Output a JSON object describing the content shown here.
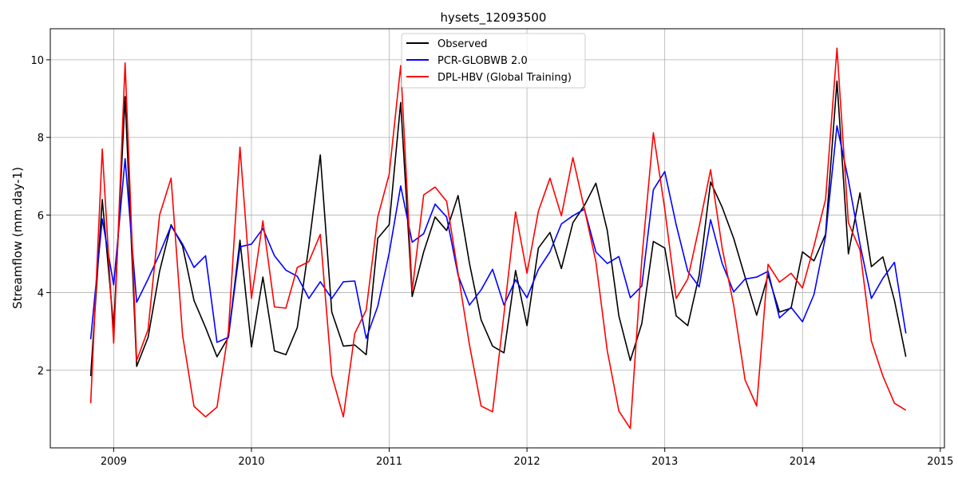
{
  "chart_data": {
    "type": "line",
    "title": "hysets_12093500",
    "xlabel": "",
    "ylabel": "Streamflow (mm.day-1)",
    "xlim": [
      2008.54,
      2015.03
    ],
    "ylim": [
      0.0,
      10.8
    ],
    "xticks": [
      2009,
      2010,
      2011,
      2012,
      2013,
      2014,
      2015
    ],
    "xtick_labels": [
      "2009",
      "2010",
      "2011",
      "2012",
      "2013",
      "2014",
      "2015"
    ],
    "yticks": [
      2,
      4,
      6,
      8,
      10
    ],
    "ytick_labels": [
      "2",
      "4",
      "6",
      "8",
      "10"
    ],
    "grid": true,
    "legend_position": "upper-center",
    "x": [
      2008.833,
      2008.917,
      2009.0,
      2009.083,
      2009.167,
      2009.25,
      2009.333,
      2009.417,
      2009.5,
      2009.583,
      2009.667,
      2009.75,
      2009.833,
      2009.917,
      2010.0,
      2010.083,
      2010.167,
      2010.25,
      2010.333,
      2010.417,
      2010.5,
      2010.583,
      2010.667,
      2010.75,
      2010.833,
      2010.917,
      2011.0,
      2011.083,
      2011.167,
      2011.25,
      2011.333,
      2011.417,
      2011.5,
      2011.583,
      2011.667,
      2011.75,
      2011.833,
      2011.917,
      2012.0,
      2012.083,
      2012.167,
      2012.25,
      2012.333,
      2012.417,
      2012.5,
      2012.583,
      2012.667,
      2012.75,
      2012.833,
      2012.917,
      2013.0,
      2013.083,
      2013.167,
      2013.25,
      2013.333,
      2013.417,
      2013.5,
      2013.583,
      2013.667,
      2013.75,
      2013.833,
      2013.917,
      2014.0,
      2014.083,
      2014.167,
      2014.25,
      2014.333,
      2014.417,
      2014.5,
      2014.583,
      2014.667,
      2014.75
    ],
    "series": [
      {
        "name": "Observed",
        "color": "#000000",
        "values": [
          1.85,
          6.4,
          3.1,
          9.05,
          2.1,
          2.85,
          4.55,
          5.75,
          5.2,
          3.8,
          3.1,
          2.35,
          2.85,
          5.35,
          2.6,
          4.4,
          2.5,
          2.4,
          3.1,
          5.2,
          7.55,
          3.5,
          2.62,
          2.65,
          2.4,
          5.4,
          5.75,
          8.9,
          3.9,
          5.05,
          5.95,
          5.6,
          6.5,
          4.75,
          3.3,
          2.62,
          2.45,
          4.57,
          3.15,
          5.15,
          5.55,
          4.62,
          5.8,
          6.25,
          6.82,
          5.6,
          3.4,
          2.25,
          3.2,
          5.32,
          5.15,
          3.4,
          3.15,
          4.45,
          6.85,
          6.2,
          5.4,
          4.4,
          3.42,
          4.45,
          3.5,
          3.6,
          5.05,
          4.82,
          5.5,
          9.45,
          5.0,
          6.57,
          4.67,
          4.92,
          3.8,
          2.35
        ]
      },
      {
        "name": "PCR-GLOBWB 2.0",
        "color": "#0000ff",
        "values": [
          2.8,
          5.9,
          4.2,
          7.45,
          3.75,
          4.35,
          5.0,
          5.72,
          5.25,
          4.65,
          4.95,
          2.72,
          2.85,
          5.18,
          5.25,
          5.65,
          4.95,
          4.58,
          4.42,
          3.85,
          4.28,
          3.85,
          4.28,
          4.3,
          2.82,
          3.65,
          5.02,
          6.75,
          5.3,
          5.52,
          6.28,
          5.95,
          4.45,
          3.68,
          4.07,
          4.6,
          3.68,
          4.33,
          3.87,
          4.6,
          5.05,
          5.77,
          5.98,
          6.15,
          5.05,
          4.75,
          4.93,
          3.87,
          4.17,
          6.65,
          7.12,
          5.75,
          4.55,
          4.15,
          5.88,
          4.75,
          4.02,
          4.35,
          4.4,
          4.55,
          3.35,
          3.62,
          3.25,
          3.95,
          5.45,
          8.3,
          6.9,
          5.25,
          3.85,
          4.37,
          4.78,
          2.95
        ]
      },
      {
        "name": "DPL-HBV (Global Training)",
        "color": "#ff0000",
        "values": [
          1.15,
          7.7,
          2.7,
          9.92,
          2.25,
          3.05,
          6.0,
          6.95,
          2.9,
          1.07,
          0.8,
          1.05,
          3.0,
          7.75,
          3.85,
          5.85,
          3.63,
          3.6,
          4.65,
          4.8,
          5.5,
          1.87,
          0.8,
          2.95,
          3.55,
          5.95,
          7.05,
          9.85,
          4.05,
          6.52,
          6.72,
          6.35,
          4.5,
          2.65,
          1.08,
          0.93,
          3.45,
          6.08,
          4.5,
          6.1,
          6.95,
          5.98,
          7.48,
          6.15,
          4.8,
          2.5,
          0.95,
          0.5,
          4.85,
          8.12,
          6.15,
          3.85,
          4.35,
          5.7,
          7.17,
          5.15,
          3.68,
          1.75,
          1.08,
          4.73,
          4.27,
          4.5,
          4.12,
          5.2,
          6.4,
          10.3,
          5.8,
          5.1,
          2.75,
          1.85,
          1.15,
          0.97
        ]
      }
    ]
  }
}
